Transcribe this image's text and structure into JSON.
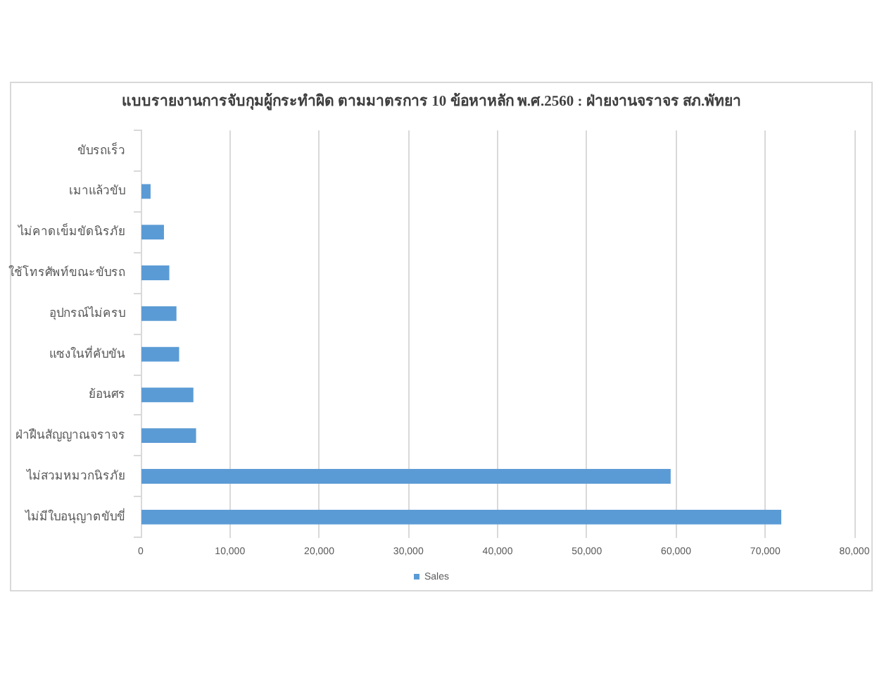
{
  "chart_data": {
    "type": "bar",
    "orientation": "horizontal",
    "title": "แบบรายงานการจับกุมผู้กระทำผิด ตามมาตรการ 10 ข้อหาหลัก พ.ศ.2560 : ฝ่ายงานจราจร สภ.พัทยา",
    "categories": [
      "ขับรถเร็ว",
      "เมาแล้วขับ",
      "ไม่คาดเข็มขัดนิรภัย",
      "ใช้โทรศัพท์ขณะขับรถ",
      "อุปกรณ์ไม่ครบ",
      "แซงในที่คับขัน",
      "ย้อนศร",
      "ฝ่าฝืนสัญญาณจราจร",
      "ไม่สวมหมวกนิรภัย",
      "ไม่มีใบอนุญาตขับขี่"
    ],
    "series": [
      {
        "name": "Sales",
        "color": "#5b9bd5",
        "values": [
          0,
          1100,
          2600,
          3200,
          4000,
          4300,
          5900,
          6200,
          59400,
          71800
        ]
      }
    ],
    "xlim": [
      0,
      80000
    ],
    "xticks": [
      0,
      {
        "value": 10000,
        "label": "10,000"
      },
      {
        "value": 20000,
        "label": "20,000"
      },
      {
        "value": 30000,
        "label": "30,000"
      },
      {
        "value": 40000,
        "label": "40,000"
      },
      {
        "value": 50000,
        "label": "50,000"
      },
      {
        "value": 60000,
        "label": "60,000"
      },
      {
        "value": 70000,
        "label": "70,000"
      },
      {
        "value": 80000,
        "label": "80,000"
      }
    ],
    "grid": "x",
    "legend": "bottom"
  }
}
